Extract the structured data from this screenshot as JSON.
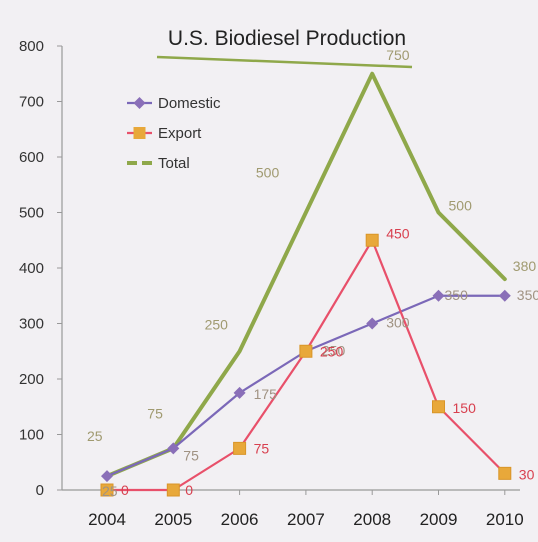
{
  "chart_data": {
    "type": "line",
    "title": "U.S. Biodiesel Production",
    "xlabel": "",
    "ylabel": "",
    "x": [
      "2004",
      "2005",
      "2006",
      "2007",
      "2008",
      "2009",
      "2010"
    ],
    "ylim": [
      0,
      800
    ],
    "yticks": [
      "0",
      "100",
      "200",
      "300",
      "400",
      "500",
      "600",
      "700",
      "800"
    ],
    "grid": false,
    "legend": "top-left",
    "series": [
      {
        "name": "Domestic",
        "color": "#7b68b8",
        "marker": "diamond",
        "values": [
          25,
          75,
          175,
          250,
          300,
          350,
          350
        ],
        "labels": [
          "25",
          "75",
          "175",
          "250",
          "300",
          "350",
          "350"
        ]
      },
      {
        "name": "Export",
        "color": "#e8506a",
        "marker": "square",
        "values": [
          0,
          0,
          75,
          250,
          450,
          150,
          30
        ],
        "labels": [
          "0",
          "0",
          "75",
          "250",
          "450",
          "150",
          "30"
        ]
      },
      {
        "name": "Total",
        "color": "#8fa84a",
        "marker": "none",
        "values": [
          25,
          75,
          250,
          500,
          750,
          500,
          380
        ],
        "labels": [
          "25",
          "75",
          "250",
          "500",
          "750",
          "500",
          "380"
        ]
      }
    ]
  }
}
